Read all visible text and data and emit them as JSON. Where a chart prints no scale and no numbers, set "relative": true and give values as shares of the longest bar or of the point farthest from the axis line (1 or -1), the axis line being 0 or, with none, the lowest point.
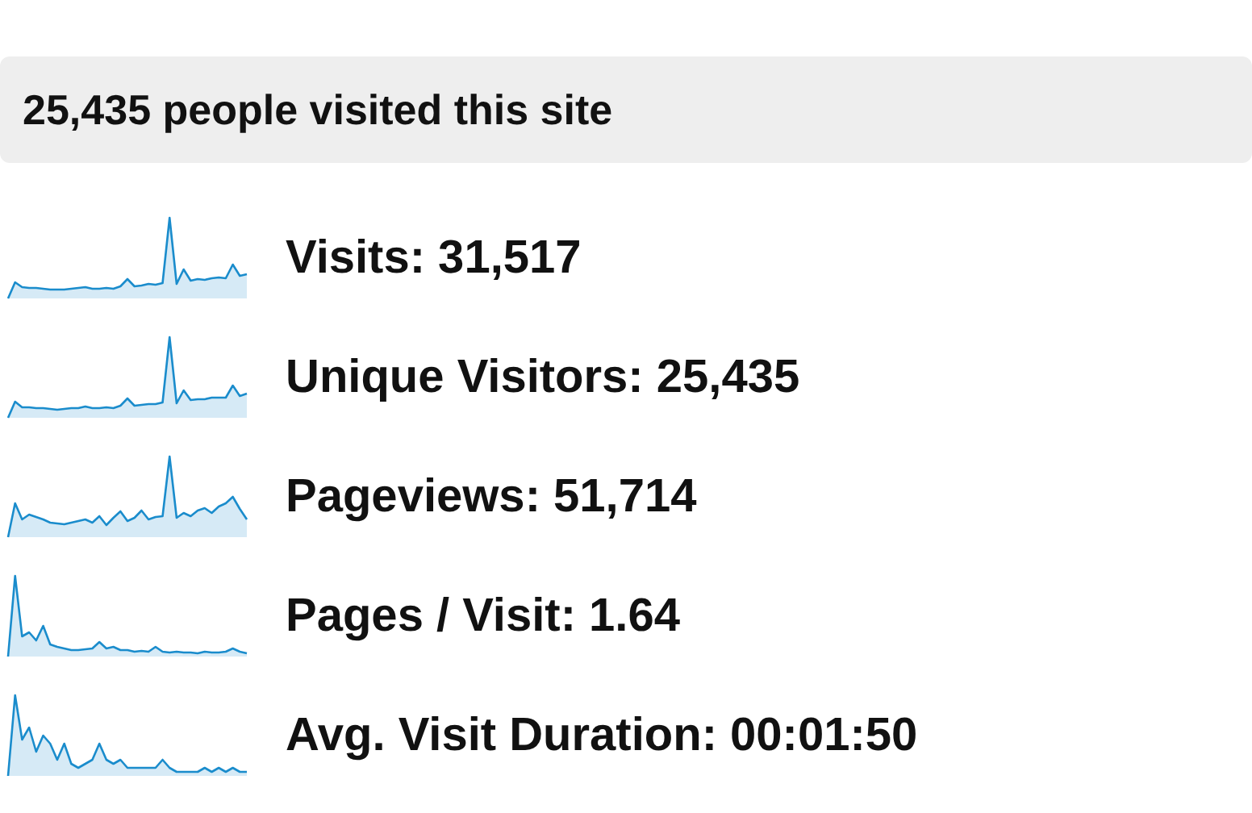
{
  "chart_data": [
    {
      "type": "other",
      "title": "25,435 people visited this site"
    },
    {
      "type": "area",
      "relative": true,
      "annotations": [
        "Visits: 31,517"
      ],
      "color": "#1a8ccc",
      "categories": [
        null,
        null,
        null,
        null,
        null,
        null,
        null,
        null,
        null,
        null,
        null,
        null,
        null,
        null,
        null,
        null,
        null,
        null,
        null,
        null,
        null,
        null,
        null,
        null,
        null,
        null,
        null,
        null,
        null,
        null,
        null,
        null,
        null,
        null,
        null
      ],
      "values": [
        0,
        0.2,
        0.14,
        0.13,
        0.13,
        0.12,
        0.11,
        0.11,
        0.11,
        0.12,
        0.13,
        0.14,
        0.12,
        0.12,
        0.13,
        0.12,
        0.15,
        0.24,
        0.15,
        0.16,
        0.18,
        0.17,
        0.19,
        1.0,
        0.18,
        0.36,
        0.22,
        0.24,
        0.23,
        0.25,
        0.26,
        0.25,
        0.42,
        0.28,
        0.3
      ]
    },
    {
      "type": "area",
      "relative": true,
      "annotations": [
        "Unique Visitors: 25,435"
      ],
      "color": "#1a8ccc",
      "categories": [
        null,
        null,
        null,
        null,
        null,
        null,
        null,
        null,
        null,
        null,
        null,
        null,
        null,
        null,
        null,
        null,
        null,
        null,
        null,
        null,
        null,
        null,
        null,
        null,
        null,
        null,
        null,
        null,
        null,
        null,
        null,
        null,
        null,
        null,
        null
      ],
      "values": [
        0,
        0.2,
        0.13,
        0.13,
        0.12,
        0.12,
        0.11,
        0.1,
        0.11,
        0.12,
        0.12,
        0.14,
        0.12,
        0.12,
        0.13,
        0.12,
        0.15,
        0.24,
        0.15,
        0.16,
        0.17,
        0.17,
        0.19,
        1.0,
        0.18,
        0.34,
        0.22,
        0.23,
        0.23,
        0.25,
        0.25,
        0.25,
        0.4,
        0.27,
        0.3
      ]
    },
    {
      "type": "area",
      "relative": true,
      "annotations": [
        "Pageviews: 51,714"
      ],
      "color": "#1a8ccc",
      "categories": [
        null,
        null,
        null,
        null,
        null,
        null,
        null,
        null,
        null,
        null,
        null,
        null,
        null,
        null,
        null,
        null,
        null,
        null,
        null,
        null,
        null,
        null,
        null,
        null,
        null,
        null,
        null,
        null,
        null,
        null,
        null,
        null,
        null,
        null,
        null
      ],
      "values": [
        0,
        0.42,
        0.22,
        0.28,
        0.25,
        0.22,
        0.18,
        0.17,
        0.16,
        0.18,
        0.2,
        0.22,
        0.18,
        0.26,
        0.15,
        0.24,
        0.32,
        0.2,
        0.24,
        0.33,
        0.22,
        0.25,
        0.26,
        1.0,
        0.24,
        0.3,
        0.26,
        0.33,
        0.36,
        0.3,
        0.38,
        0.42,
        0.5,
        0.35,
        0.22
      ]
    },
    {
      "type": "area",
      "relative": true,
      "annotations": [
        "Pages / Visit: 1.64"
      ],
      "color": "#1a8ccc",
      "categories": [
        null,
        null,
        null,
        null,
        null,
        null,
        null,
        null,
        null,
        null,
        null,
        null,
        null,
        null,
        null,
        null,
        null,
        null,
        null,
        null,
        null,
        null,
        null,
        null,
        null,
        null,
        null,
        null,
        null,
        null,
        null,
        null,
        null,
        null,
        null
      ],
      "values": [
        0,
        1.0,
        0.25,
        0.3,
        0.2,
        0.38,
        0.15,
        0.12,
        0.1,
        0.08,
        0.08,
        0.09,
        0.1,
        0.18,
        0.1,
        0.12,
        0.08,
        0.08,
        0.06,
        0.07,
        0.06,
        0.12,
        0.06,
        0.05,
        0.06,
        0.05,
        0.05,
        0.04,
        0.06,
        0.05,
        0.05,
        0.06,
        0.1,
        0.06,
        0.04
      ]
    },
    {
      "type": "area",
      "relative": true,
      "annotations": [
        "Avg. Visit Duration: 00:01:50"
      ],
      "color": "#1a8ccc",
      "categories": [
        null,
        null,
        null,
        null,
        null,
        null,
        null,
        null,
        null,
        null,
        null,
        null,
        null,
        null,
        null,
        null,
        null,
        null,
        null,
        null,
        null,
        null,
        null,
        null,
        null,
        null,
        null,
        null,
        null,
        null,
        null,
        null,
        null,
        null,
        null
      ],
      "values": [
        0,
        1.0,
        0.45,
        0.6,
        0.3,
        0.5,
        0.4,
        0.2,
        0.4,
        0.15,
        0.1,
        0.15,
        0.2,
        0.4,
        0.2,
        0.15,
        0.2,
        0.1,
        0.1,
        0.1,
        0.1,
        0.1,
        0.2,
        0.1,
        0.05,
        0.05,
        0.05,
        0.05,
        0.1,
        0.05,
        0.1,
        0.05,
        0.1,
        0.05,
        0.05
      ]
    }
  ]
}
